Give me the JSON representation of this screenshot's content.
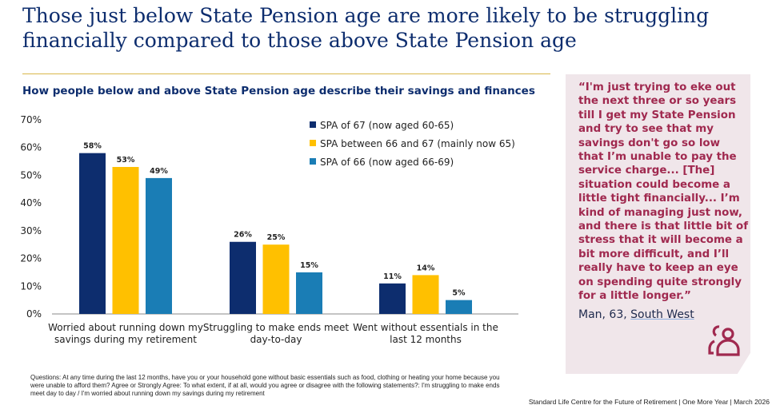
{
  "title": "Those just below State Pension age are more likely to be struggling financially compared to those above State Pension age",
  "chart_data": {
    "type": "bar",
    "title": "How people below and above State Pension age describe their savings and finances",
    "categories": [
      "Worried about running down my savings during my retirement",
      "Struggling to make ends meet day-to-day",
      "Went without essentials in the last 12 months"
    ],
    "category_lines": [
      [
        "Worried about running down my",
        "savings during my retirement"
      ],
      [
        "Struggling to make ends meet",
        "day-to-day"
      ],
      [
        "Went without essentials in the",
        "last 12 months"
      ]
    ],
    "series": [
      {
        "name": "SPA of 67 (now aged 60-65)",
        "values": [
          58,
          26,
          11
        ],
        "color": "#0d2d6e"
      },
      {
        "name": "SPA between 66 and 67 (mainly now 65)",
        "values": [
          53,
          25,
          14
        ],
        "color": "#ffc000"
      },
      {
        "name": "SPA of 66 (now aged 66-69)",
        "values": [
          49,
          15,
          5
        ],
        "color": "#1a7db5"
      }
    ],
    "ylim": [
      0,
      70
    ],
    "yticks": [
      "0%",
      "10%",
      "20%",
      "30%",
      "40%",
      "50%",
      "60%",
      "70%"
    ],
    "grid": false,
    "legend": "top-right",
    "value_suffix": "%"
  },
  "quote": {
    "text": "“I'm just trying to eke out the next three or so years till I get my State Pension and try to see that my savings don't go so low that I’m unable to pay the service charge... [The] situation could become a little tight financially... I’m kind of managing just now, and there is that little bit of stress that it will become a bit more difficult, and I’ll really have to keep an eye on spending quite strongly for a little longer.”",
    "attribution_prefix": "Man, 63, ",
    "attribution_region": "South West",
    "icon": "people-icon"
  },
  "notes": "Questions: At any time during the last 12 months, have you or your household gone without basic essentials such as food, clothing or heating your home because you were unable to afford them?  Agree or Strongly Agree: To what extent, if at all, would you agree or disagree with the following statements?: I'm struggling to make ends meet day to day / I'm worried about running down my savings during my retirement",
  "footer": "Standard Life Centre for the Future of Retirement  |  One More Year | March 2026"
}
